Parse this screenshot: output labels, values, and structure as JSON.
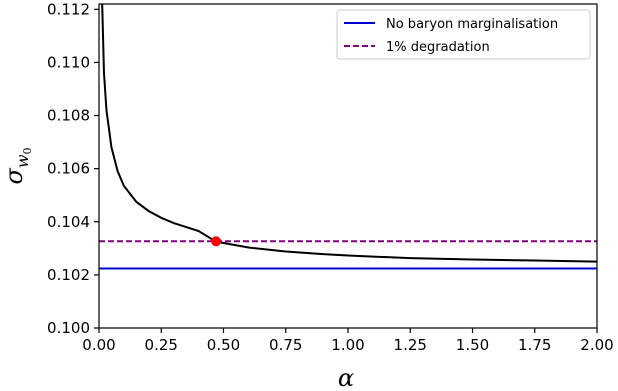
{
  "chart_data": {
    "type": "line",
    "title": "",
    "xlabel": "α",
    "ylabel": {
      "symbol": "σ",
      "subscript_base": "w",
      "subscript_index": "0"
    },
    "xlim": [
      0.0,
      2.0
    ],
    "ylim": [
      0.1,
      0.1122
    ],
    "x_ticks": [
      "0.00",
      "0.25",
      "0.50",
      "0.75",
      "1.00",
      "1.25",
      "1.50",
      "1.75",
      "2.00"
    ],
    "y_ticks": [
      "0.100",
      "0.102",
      "0.104",
      "0.106",
      "0.108",
      "0.110",
      "0.112"
    ],
    "grid": false,
    "legend_position": "top-right",
    "colors": {
      "curve": "#000000",
      "no_baryon": "#0000cc",
      "degradation": "#800080",
      "marker": "#ff0000"
    },
    "series": [
      {
        "label": "",
        "style": "solid",
        "x": [
          0.012,
          0.02,
          0.03,
          0.05,
          0.075,
          0.1,
          0.15,
          0.2,
          0.25,
          0.3,
          0.35,
          0.4,
          0.47,
          0.5,
          0.6,
          0.75,
          0.9,
          1.0,
          1.25,
          1.5,
          1.75,
          2.0
        ],
        "y": [
          0.1125,
          0.1096,
          0.1082,
          0.1068,
          0.1059,
          0.10535,
          0.10475,
          0.1044,
          0.10415,
          0.10395,
          0.1038,
          0.10365,
          0.10325,
          0.1032,
          0.10303,
          0.10288,
          0.10278,
          0.10273,
          0.10263,
          0.10258,
          0.10254,
          0.1025
        ]
      }
    ],
    "reference_lines": [
      {
        "name": "No baryon marginalisation",
        "style": "solid",
        "y": 0.10224
      },
      {
        "name": "1% degradation",
        "style": "dashed",
        "y": 0.103265
      }
    ],
    "highlight_point": {
      "x": 0.47,
      "y": 0.103265
    }
  }
}
